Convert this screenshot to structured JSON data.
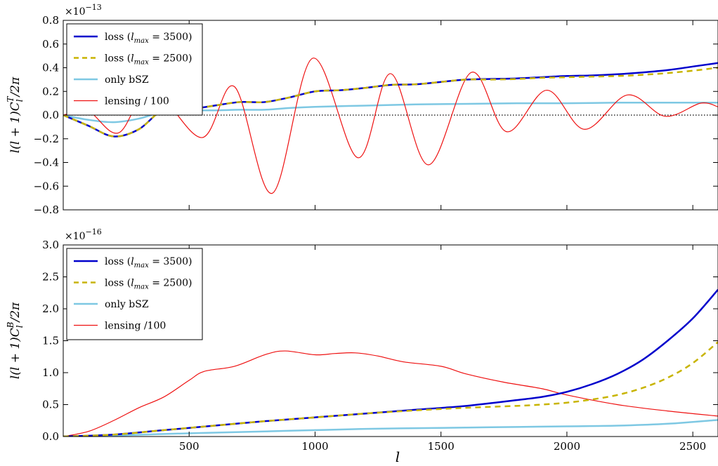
{
  "figure": {
    "xlabel": "l"
  },
  "chart_data": [
    {
      "type": "line",
      "panel": "top",
      "ylabel": "l(l+1)C_l^T/2π",
      "scale_note": "×10",
      "scale_exp": "−13",
      "xlim": [
        0,
        2600
      ],
      "ylim": [
        -0.8,
        0.8
      ],
      "yticks": [
        -0.8,
        -0.6,
        -0.4,
        -0.2,
        0.0,
        0.2,
        0.4,
        0.6,
        0.8
      ],
      "ytick_labels": [
        "−0.8",
        "−0.6",
        "−0.4",
        "−0.2",
        "0.0",
        "0.2",
        "0.4",
        "0.6",
        "0.8"
      ],
      "xticks": [
        500,
        1000,
        1500,
        2000,
        2500
      ],
      "xtick_labels": [
        "",
        "",
        "",
        "",
        ""
      ],
      "zero_line": true,
      "legend_position": "top-left",
      "series": [
        {
          "name": "loss (l_max = 3500)",
          "legend_main": "loss (",
          "legend_sub_base": "l",
          "legend_sub": "max",
          "legend_tail": " = 3500)",
          "color": "#0000cc",
          "style": "solid",
          "width": 2.5,
          "x": [
            0,
            100,
            200,
            300,
            400,
            500,
            600,
            700,
            800,
            900,
            1000,
            1100,
            1200,
            1300,
            1400,
            1500,
            1600,
            1700,
            1800,
            1900,
            2000,
            2100,
            2200,
            2300,
            2400,
            2500,
            2600
          ],
          "y": [
            0,
            -0.09,
            -0.18,
            -0.12,
            0.05,
            0.05,
            0.08,
            0.11,
            0.11,
            0.15,
            0.2,
            0.21,
            0.23,
            0.255,
            0.26,
            0.28,
            0.3,
            0.305,
            0.31,
            0.32,
            0.33,
            0.335,
            0.345,
            0.36,
            0.38,
            0.41,
            0.44
          ]
        },
        {
          "name": "loss (l_max = 2500)",
          "legend_main": "loss (",
          "legend_sub_base": "l",
          "legend_sub": "max",
          "legend_tail": " = 2500)",
          "color": "#c8b400",
          "style": "dashed",
          "width": 2.5,
          "x": [
            0,
            100,
            200,
            300,
            400,
            500,
            600,
            700,
            800,
            900,
            1000,
            1100,
            1200,
            1300,
            1400,
            1500,
            1600,
            1700,
            1800,
            1900,
            2000,
            2100,
            2200,
            2300,
            2400,
            2500,
            2600
          ],
          "y": [
            0,
            -0.09,
            -0.18,
            -0.12,
            0.05,
            0.05,
            0.08,
            0.11,
            0.11,
            0.15,
            0.2,
            0.21,
            0.23,
            0.255,
            0.26,
            0.28,
            0.3,
            0.3,
            0.305,
            0.315,
            0.32,
            0.325,
            0.33,
            0.34,
            0.355,
            0.375,
            0.4
          ]
        },
        {
          "name": "only bSZ",
          "color": "#7ec8e3",
          "style": "solid",
          "width": 2.5,
          "x": [
            0,
            100,
            200,
            300,
            400,
            500,
            600,
            700,
            800,
            900,
            1000,
            1200,
            1400,
            1600,
            1800,
            2000,
            2200,
            2400,
            2600
          ],
          "y": [
            0,
            -0.04,
            -0.06,
            -0.03,
            0.03,
            0.04,
            0.04,
            0.045,
            0.045,
            0.06,
            0.07,
            0.08,
            0.09,
            0.095,
            0.1,
            0.1,
            0.105,
            0.105,
            0.105
          ]
        },
        {
          "name": "lensing / 100",
          "color": "#ee1111",
          "style": "solid",
          "width": 1.2,
          "x": [
            0,
            100,
            220,
            350,
            550,
            680,
            830,
            990,
            1170,
            1300,
            1450,
            1620,
            1760,
            1920,
            2070,
            2240,
            2390,
            2530,
            2600
          ],
          "y": [
            0,
            0.03,
            -0.15,
            0.22,
            -0.19,
            0.24,
            -0.66,
            0.48,
            -0.36,
            0.35,
            -0.42,
            0.36,
            -0.14,
            0.21,
            -0.12,
            0.17,
            -0.01,
            0.1,
            0.07
          ]
        }
      ]
    },
    {
      "type": "line",
      "panel": "bottom",
      "ylabel": "l(l+1)C_l^B/2π",
      "scale_note": "×10",
      "scale_exp": "−16",
      "xlim": [
        0,
        2600
      ],
      "ylim": [
        0,
        3.0
      ],
      "yticks": [
        0.0,
        0.5,
        1.0,
        1.5,
        2.0,
        2.5,
        3.0
      ],
      "ytick_labels": [
        "0.0",
        "0.5",
        "1.0",
        "1.5",
        "2.0",
        "2.5",
        "3.0"
      ],
      "xticks": [
        500,
        1000,
        1500,
        2000,
        2500
      ],
      "xtick_labels": [
        "500",
        "1000",
        "1500",
        "2000",
        "2500"
      ],
      "legend_position": "top-left",
      "series": [
        {
          "name": "loss (l_max = 3500)",
          "legend_main": "loss (",
          "legend_sub_base": "l",
          "legend_sub": "max",
          "legend_tail": " = 3500)",
          "color": "#0000cc",
          "style": "solid",
          "width": 2.5,
          "x": [
            0,
            200,
            400,
            600,
            800,
            1000,
            1200,
            1400,
            1600,
            1800,
            1900,
            2000,
            2100,
            2200,
            2300,
            2400,
            2500,
            2600
          ],
          "y": [
            0,
            0.03,
            0.1,
            0.17,
            0.24,
            0.3,
            0.36,
            0.42,
            0.48,
            0.57,
            0.62,
            0.7,
            0.82,
            0.98,
            1.2,
            1.5,
            1.85,
            2.3
          ]
        },
        {
          "name": "loss (l_max = 2500)",
          "legend_main": "loss (",
          "legend_sub_base": "l",
          "legend_sub": "max",
          "legend_tail": " = 2500)",
          "color": "#c8b400",
          "style": "dashed",
          "width": 2.5,
          "x": [
            0,
            200,
            400,
            600,
            800,
            1000,
            1200,
            1400,
            1600,
            1800,
            1900,
            2000,
            2100,
            2200,
            2300,
            2400,
            2500,
            2600
          ],
          "y": [
            0,
            0.03,
            0.1,
            0.17,
            0.24,
            0.3,
            0.36,
            0.41,
            0.45,
            0.48,
            0.5,
            0.53,
            0.58,
            0.65,
            0.76,
            0.92,
            1.15,
            1.48
          ]
        },
        {
          "name": "only bSZ",
          "color": "#7ec8e3",
          "style": "solid",
          "width": 2.5,
          "x": [
            0,
            200,
            400,
            600,
            800,
            1000,
            1200,
            1400,
            1600,
            1800,
            2000,
            2200,
            2400,
            2600
          ],
          "y": [
            0,
            0.015,
            0.04,
            0.06,
            0.08,
            0.1,
            0.12,
            0.13,
            0.14,
            0.15,
            0.16,
            0.17,
            0.2,
            0.26
          ]
        },
        {
          "name": "lensing /100",
          "color": "#ee1111",
          "style": "solid",
          "width": 1.2,
          "x": [
            0,
            100,
            200,
            300,
            400,
            500,
            560,
            680,
            800,
            880,
            1000,
            1080,
            1160,
            1250,
            1350,
            1500,
            1600,
            1750,
            1900,
            2000,
            2200,
            2400,
            2600
          ],
          "y": [
            0,
            0.08,
            0.25,
            0.45,
            0.62,
            0.88,
            1.02,
            1.1,
            1.28,
            1.34,
            1.28,
            1.3,
            1.31,
            1.26,
            1.17,
            1.1,
            0.98,
            0.85,
            0.75,
            0.65,
            0.5,
            0.4,
            0.32
          ]
        }
      ]
    }
  ]
}
